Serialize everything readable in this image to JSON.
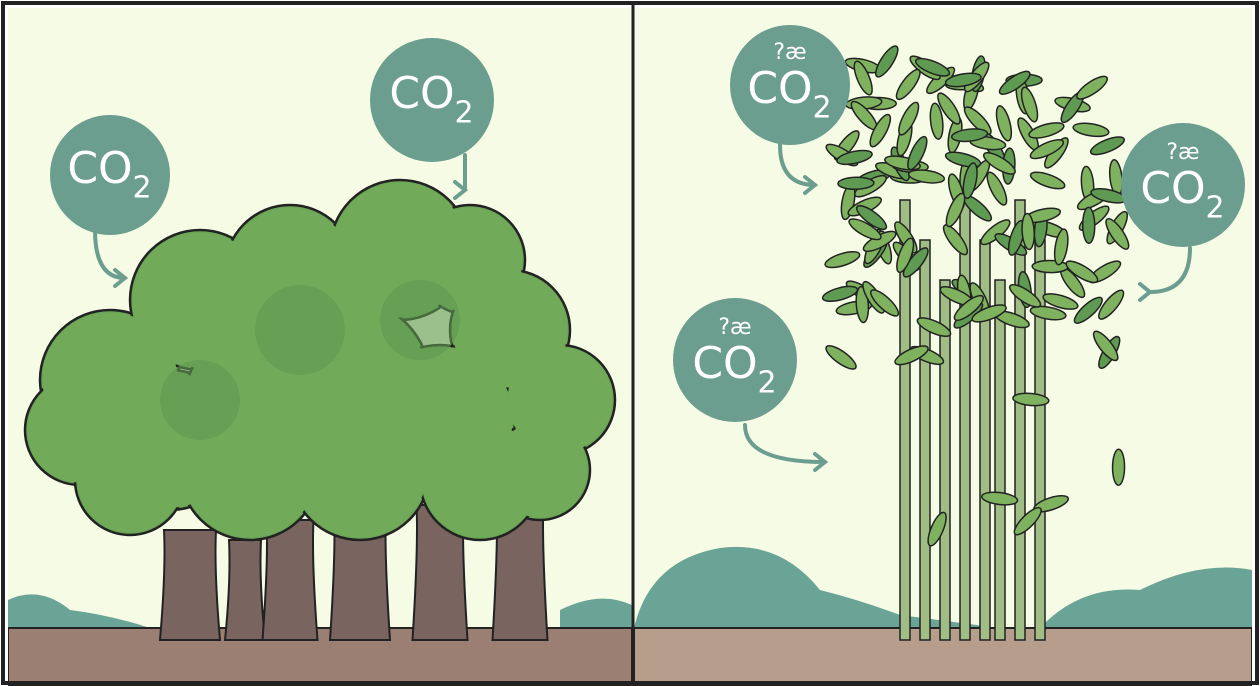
{
  "panels": [
    {
      "bubbles": [
        {
          "text": "CO",
          "subscript": "2"
        },
        {
          "text": "CO",
          "subscript": "2"
        }
      ]
    },
    {
      "bubbles": [
        {
          "prefix": "?æ",
          "text": "CO",
          "subscript": "2"
        },
        {
          "prefix": "?æ",
          "text": "CO",
          "subscript": "2"
        },
        {
          "prefix": "?æ",
          "text": "CO",
          "subscript": "2"
        }
      ]
    }
  ]
}
